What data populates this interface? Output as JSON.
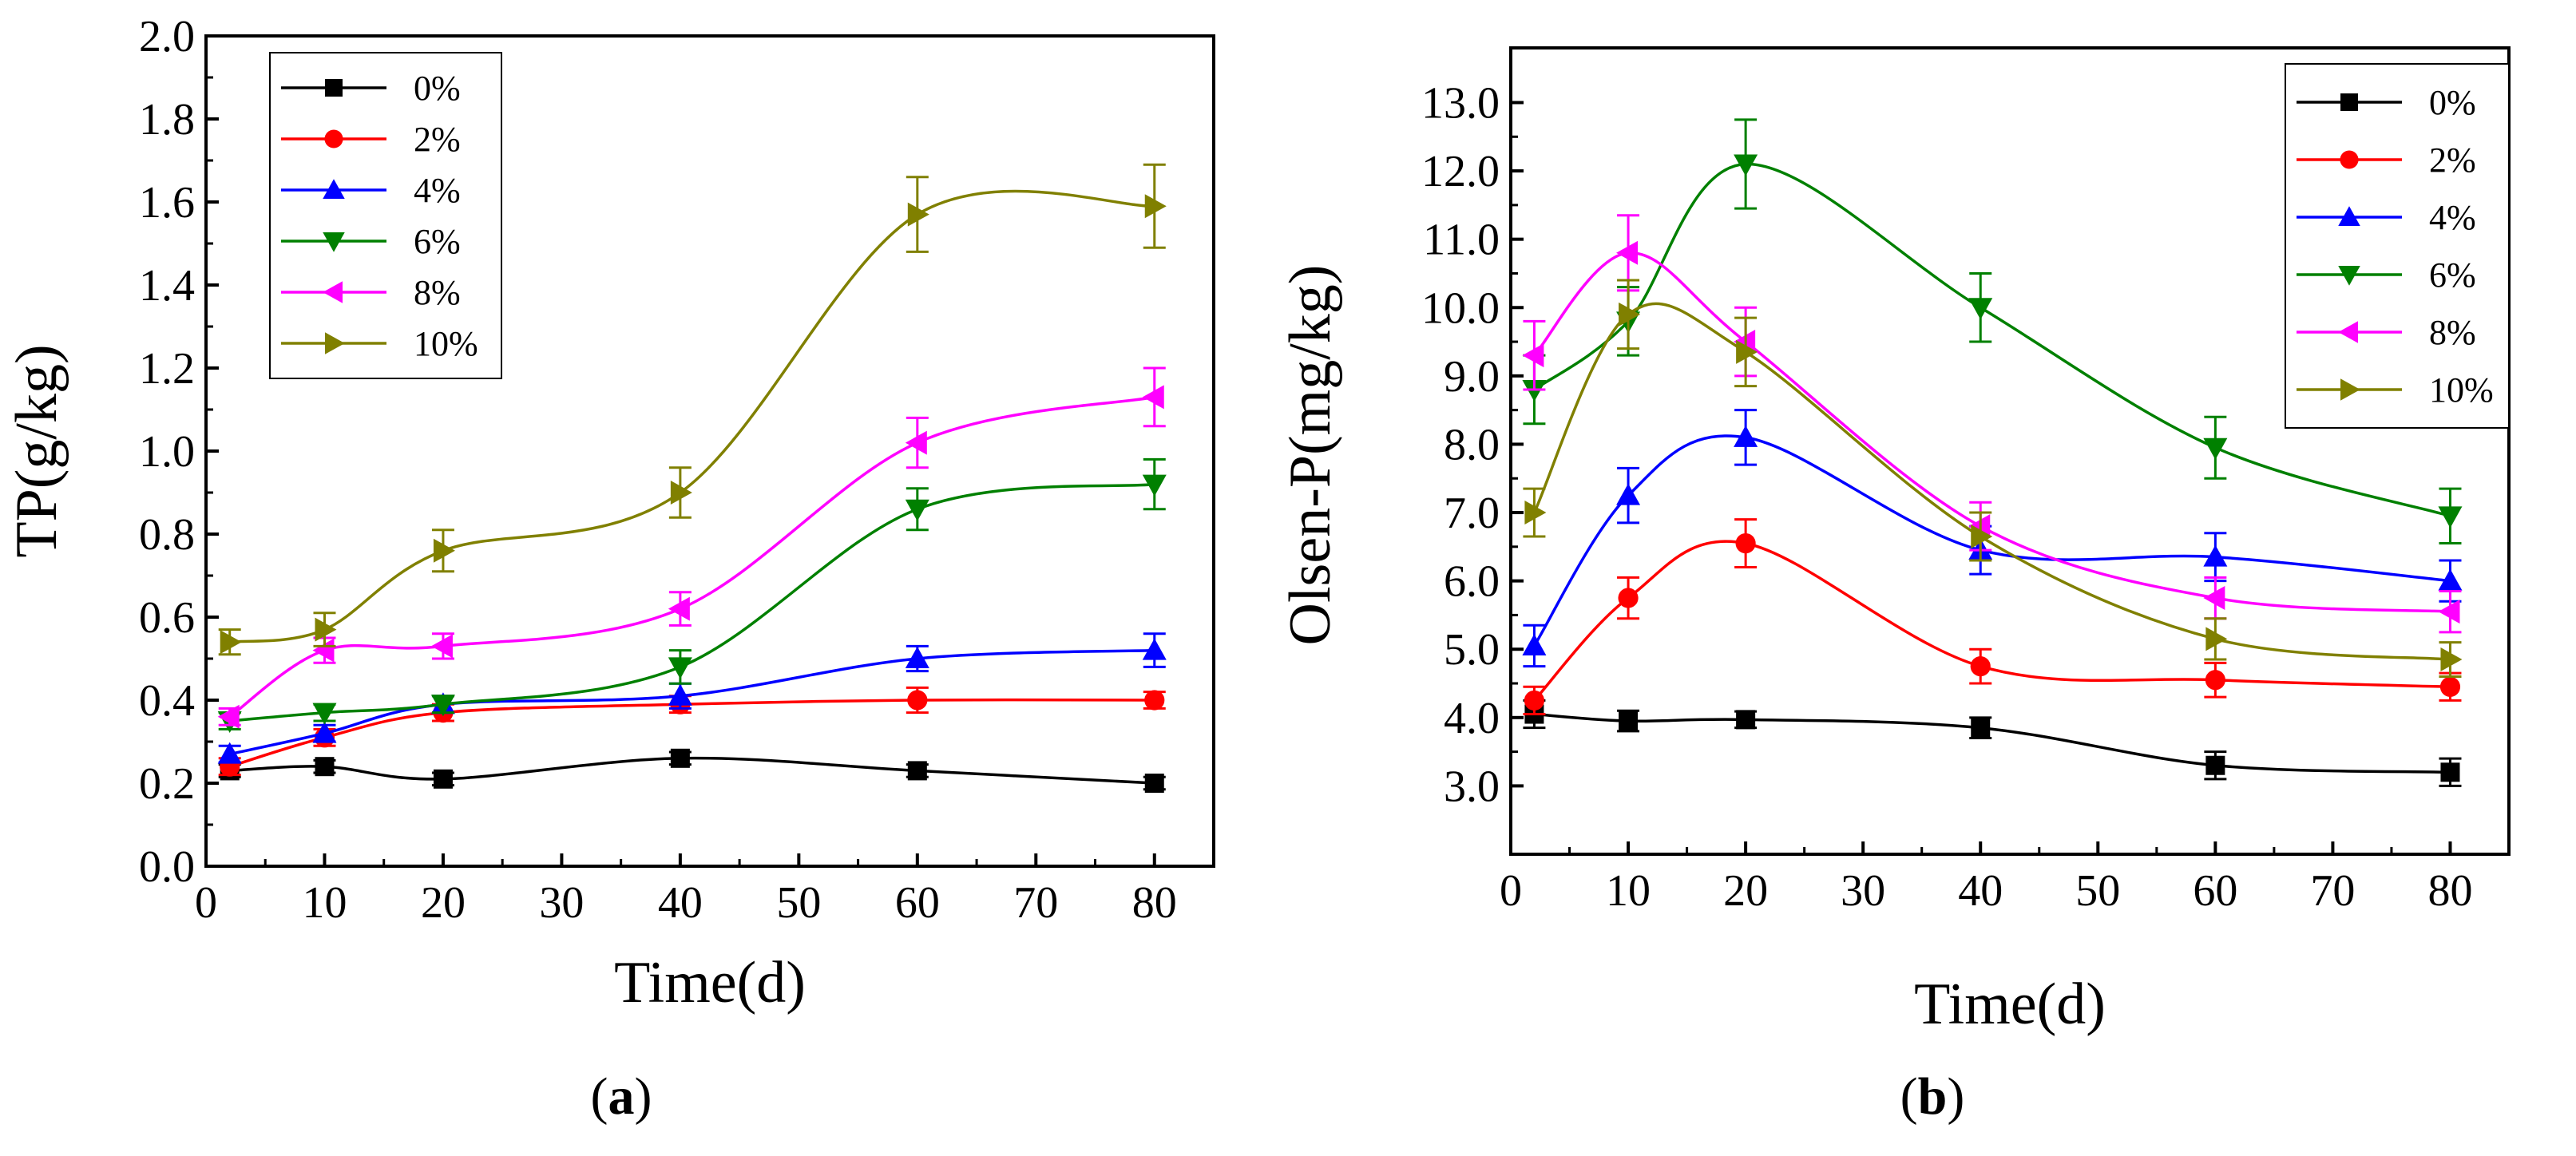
{
  "chart_data": [
    {
      "type": "line",
      "panel_label": "a",
      "xlabel": "Time(d)",
      "ylabel": "TP(g/kg)",
      "xlim": [
        0,
        85
      ],
      "ylim": [
        0.0,
        2.0
      ],
      "xticks": [
        0,
        10,
        20,
        30,
        40,
        50,
        60,
        70,
        80
      ],
      "yticks": [
        0.0,
        0.2,
        0.4,
        0.6,
        0.8,
        1.0,
        1.2,
        1.4,
        1.6,
        1.8,
        2.0
      ],
      "ytick_labels": [
        "0.0",
        "0.2",
        "0.4",
        "0.6",
        "0.8",
        "1.0",
        "1.2",
        "1.4",
        "1.6",
        "1.8",
        "2.0"
      ],
      "xtick_labels": [
        "0",
        "10",
        "20",
        "30",
        "40",
        "50",
        "60",
        "70",
        "80"
      ],
      "grid": false,
      "legend_position": "top-left",
      "x": [
        2,
        10,
        20,
        40,
        60,
        80
      ],
      "series": [
        {
          "name": "0%",
          "color": "#000000",
          "marker": "square",
          "values": [
            0.23,
            0.24,
            0.21,
            0.26,
            0.23,
            0.2
          ],
          "errors": [
            0.015,
            0.015,
            0.015,
            0.015,
            0.015,
            0.015
          ]
        },
        {
          "name": "2%",
          "color": "#ff0000",
          "marker": "circle",
          "values": [
            0.24,
            0.31,
            0.37,
            0.39,
            0.4,
            0.4
          ],
          "errors": [
            0.02,
            0.02,
            0.02,
            0.02,
            0.03,
            0.02
          ]
        },
        {
          "name": "4%",
          "color": "#0000ff",
          "marker": "triangle-up",
          "values": [
            0.27,
            0.32,
            0.39,
            0.41,
            0.5,
            0.52
          ],
          "errors": [
            0.02,
            0.02,
            0.02,
            0.03,
            0.03,
            0.04
          ]
        },
        {
          "name": "6%",
          "color": "#008000",
          "marker": "triangle-down",
          "values": [
            0.35,
            0.37,
            0.39,
            0.48,
            0.86,
            0.92
          ],
          "errors": [
            0.02,
            0.02,
            0.02,
            0.04,
            0.05,
            0.06
          ]
        },
        {
          "name": "8%",
          "color": "#ff00ff",
          "marker": "triangle-left",
          "values": [
            0.36,
            0.52,
            0.53,
            0.62,
            1.02,
            1.13
          ],
          "errors": [
            0.02,
            0.03,
            0.03,
            0.04,
            0.06,
            0.07
          ]
        },
        {
          "name": "10%",
          "color": "#808000",
          "marker": "triangle-right",
          "values": [
            0.54,
            0.57,
            0.76,
            0.9,
            1.57,
            1.59
          ],
          "errors": [
            0.03,
            0.04,
            0.05,
            0.06,
            0.09,
            0.1
          ]
        }
      ]
    },
    {
      "type": "line",
      "panel_label": "b",
      "xlabel": "Time(d)",
      "ylabel": "Olsen-P(mg/kg)",
      "xlim": [
        0,
        85
      ],
      "ylim": [
        2.0,
        13.8
      ],
      "xticks": [
        0,
        10,
        20,
        30,
        40,
        50,
        60,
        70,
        80
      ],
      "yticks": [
        3.0,
        4.0,
        5.0,
        6.0,
        7.0,
        8.0,
        9.0,
        10.0,
        11.0,
        12.0,
        13.0
      ],
      "ytick_labels": [
        "3.0",
        "4.0",
        "5.0",
        "6.0",
        "7.0",
        "8.0",
        "9.0",
        "10.0",
        "11.0",
        "12.0",
        "13.0"
      ],
      "xtick_labels": [
        "0",
        "10",
        "20",
        "30",
        "40",
        "50",
        "60",
        "70",
        "80"
      ],
      "grid": false,
      "legend_position": "top-right",
      "x": [
        2,
        10,
        20,
        40,
        60,
        80
      ],
      "series": [
        {
          "name": "0%",
          "color": "#000000",
          "marker": "square",
          "values": [
            4.05,
            3.95,
            3.97,
            3.85,
            3.3,
            3.2
          ],
          "errors": [
            0.2,
            0.15,
            0.12,
            0.15,
            0.2,
            0.2
          ]
        },
        {
          "name": "2%",
          "color": "#ff0000",
          "marker": "circle",
          "values": [
            4.25,
            5.75,
            6.55,
            4.75,
            4.55,
            4.45
          ],
          "errors": [
            0.2,
            0.3,
            0.35,
            0.25,
            0.25,
            0.2
          ]
        },
        {
          "name": "4%",
          "color": "#0000ff",
          "marker": "triangle-up",
          "values": [
            5.05,
            7.25,
            8.1,
            6.45,
            6.35,
            6.0
          ],
          "errors": [
            0.3,
            0.4,
            0.4,
            0.35,
            0.35,
            0.3
          ]
        },
        {
          "name": "6%",
          "color": "#008000",
          "marker": "triangle-down",
          "values": [
            8.8,
            9.8,
            12.1,
            10.0,
            7.95,
            6.95
          ],
          "errors": [
            0.5,
            0.5,
            0.65,
            0.5,
            0.45,
            0.4
          ]
        },
        {
          "name": "8%",
          "color": "#ff00ff",
          "marker": "triangle-left",
          "values": [
            9.3,
            10.8,
            9.5,
            6.8,
            5.75,
            5.55
          ],
          "errors": [
            0.5,
            0.55,
            0.5,
            0.35,
            0.3,
            0.3
          ]
        },
        {
          "name": "10%",
          "color": "#808000",
          "marker": "triangle-right",
          "values": [
            7.0,
            9.9,
            9.35,
            6.65,
            5.15,
            4.85
          ],
          "errors": [
            0.35,
            0.5,
            0.5,
            0.35,
            0.3,
            0.25
          ]
        }
      ]
    }
  ]
}
